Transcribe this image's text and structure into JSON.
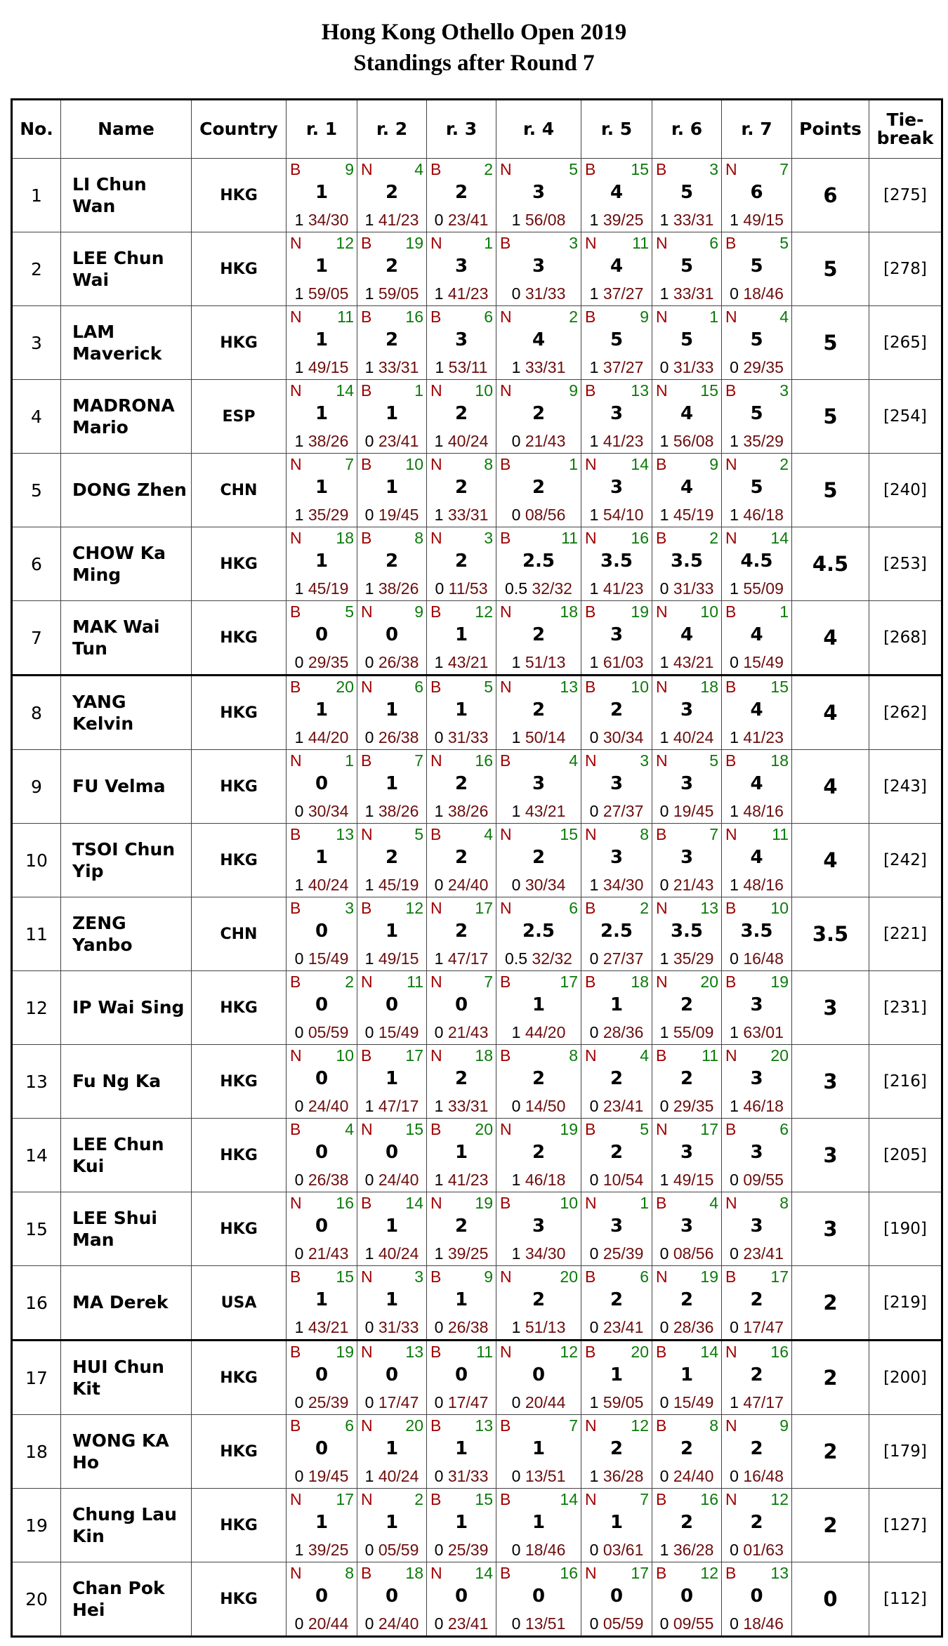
{
  "title": "Hong Kong Othello Open 2019",
  "subtitle": "Standings after Round 7",
  "headers": {
    "no": "No.",
    "name": "Name",
    "country": "Country",
    "rounds": [
      "r. 1",
      "r. 2",
      "r. 3",
      "r. 4",
      "r. 5",
      "r. 6",
      "r. 7"
    ],
    "points": "Points",
    "tiebreak_1": "Tie-",
    "tiebreak_2": "break"
  },
  "colors": {
    "disc_color": "#a00000",
    "opponent": "#0a7a0a",
    "discs": "#6b0d0d"
  },
  "rows": [
    {
      "no": "1",
      "name": "LI Chun Wan",
      "country": "HKG",
      "points": "6",
      "tiebreak": "[275]",
      "games": [
        [
          "B",
          "9",
          "1",
          "1",
          "34/30"
        ],
        [
          "N",
          "4",
          "2",
          "1",
          "41/23"
        ],
        [
          "B",
          "2",
          "2",
          "0",
          "23/41"
        ],
        [
          "N",
          "5",
          "3",
          "1",
          "56/08"
        ],
        [
          "B",
          "15",
          "4",
          "1",
          "39/25"
        ],
        [
          "B",
          "3",
          "5",
          "1",
          "33/31"
        ],
        [
          "N",
          "7",
          "6",
          "1",
          "49/15"
        ]
      ]
    },
    {
      "no": "2",
      "name": "LEE Chun Wai",
      "country": "HKG",
      "points": "5",
      "tiebreak": "[278]",
      "games": [
        [
          "N",
          "12",
          "1",
          "1",
          "59/05"
        ],
        [
          "B",
          "19",
          "2",
          "1",
          "59/05"
        ],
        [
          "N",
          "1",
          "3",
          "1",
          "41/23"
        ],
        [
          "B",
          "3",
          "3",
          "0",
          "31/33"
        ],
        [
          "N",
          "11",
          "4",
          "1",
          "37/27"
        ],
        [
          "N",
          "6",
          "5",
          "1",
          "33/31"
        ],
        [
          "B",
          "5",
          "5",
          "0",
          "18/46"
        ]
      ]
    },
    {
      "no": "3",
      "name": "LAM Maverick",
      "country": "HKG",
      "points": "5",
      "tiebreak": "[265]",
      "games": [
        [
          "N",
          "11",
          "1",
          "1",
          "49/15"
        ],
        [
          "B",
          "16",
          "2",
          "1",
          "33/31"
        ],
        [
          "B",
          "6",
          "3",
          "1",
          "53/11"
        ],
        [
          "N",
          "2",
          "4",
          "1",
          "33/31"
        ],
        [
          "B",
          "9",
          "5",
          "1",
          "37/27"
        ],
        [
          "N",
          "1",
          "5",
          "0",
          "31/33"
        ],
        [
          "N",
          "4",
          "5",
          "0",
          "29/35"
        ]
      ]
    },
    {
      "no": "4",
      "name": "MADRONA Mario",
      "country": "ESP",
      "points": "5",
      "tiebreak": "[254]",
      "games": [
        [
          "N",
          "14",
          "1",
          "1",
          "38/26"
        ],
        [
          "B",
          "1",
          "1",
          "0",
          "23/41"
        ],
        [
          "N",
          "10",
          "2",
          "1",
          "40/24"
        ],
        [
          "N",
          "9",
          "2",
          "0",
          "21/43"
        ],
        [
          "B",
          "13",
          "3",
          "1",
          "41/23"
        ],
        [
          "N",
          "15",
          "4",
          "1",
          "56/08"
        ],
        [
          "B",
          "3",
          "5",
          "1",
          "35/29"
        ]
      ]
    },
    {
      "no": "5",
      "name": "DONG Zhen",
      "country": "CHN",
      "points": "5",
      "tiebreak": "[240]",
      "games": [
        [
          "N",
          "7",
          "1",
          "1",
          "35/29"
        ],
        [
          "B",
          "10",
          "1",
          "0",
          "19/45"
        ],
        [
          "N",
          "8",
          "2",
          "1",
          "33/31"
        ],
        [
          "B",
          "1",
          "2",
          "0",
          "08/56"
        ],
        [
          "N",
          "14",
          "3",
          "1",
          "54/10"
        ],
        [
          "B",
          "9",
          "4",
          "1",
          "45/19"
        ],
        [
          "N",
          "2",
          "5",
          "1",
          "46/18"
        ]
      ]
    },
    {
      "no": "6",
      "name": "CHOW Ka Ming",
      "country": "HKG",
      "points": "4.5",
      "tiebreak": "[253]",
      "games": [
        [
          "N",
          "18",
          "1",
          "1",
          "45/19"
        ],
        [
          "B",
          "8",
          "2",
          "1",
          "38/26"
        ],
        [
          "N",
          "3",
          "2",
          "0",
          "11/53"
        ],
        [
          "B",
          "11",
          "2.5",
          "0.5",
          "32/32"
        ],
        [
          "N",
          "16",
          "3.5",
          "1",
          "41/23"
        ],
        [
          "B",
          "2",
          "3.5",
          "0",
          "31/33"
        ],
        [
          "N",
          "14",
          "4.5",
          "1",
          "55/09"
        ]
      ]
    },
    {
      "no": "7",
      "name": "MAK Wai Tun",
      "country": "HKG",
      "points": "4",
      "tiebreak": "[268]",
      "games": [
        [
          "B",
          "5",
          "0",
          "0",
          "29/35"
        ],
        [
          "N",
          "9",
          "0",
          "0",
          "26/38"
        ],
        [
          "B",
          "12",
          "1",
          "1",
          "43/21"
        ],
        [
          "N",
          "18",
          "2",
          "1",
          "51/13"
        ],
        [
          "B",
          "19",
          "3",
          "1",
          "61/03"
        ],
        [
          "N",
          "10",
          "4",
          "1",
          "43/21"
        ],
        [
          "B",
          "1",
          "4",
          "0",
          "15/49"
        ]
      ]
    },
    {
      "no": "8",
      "name": "YANG Kelvin",
      "country": "HKG",
      "points": "4",
      "tiebreak": "[262]",
      "games": [
        [
          "B",
          "20",
          "1",
          "1",
          "44/20"
        ],
        [
          "N",
          "6",
          "1",
          "0",
          "26/38"
        ],
        [
          "B",
          "5",
          "1",
          "0",
          "31/33"
        ],
        [
          "N",
          "13",
          "2",
          "1",
          "50/14"
        ],
        [
          "B",
          "10",
          "2",
          "0",
          "30/34"
        ],
        [
          "N",
          "18",
          "3",
          "1",
          "40/24"
        ],
        [
          "B",
          "15",
          "4",
          "1",
          "41/23"
        ]
      ]
    },
    {
      "no": "9",
      "name": "FU Velma",
      "country": "HKG",
      "points": "4",
      "tiebreak": "[243]",
      "games": [
        [
          "N",
          "1",
          "0",
          "0",
          "30/34"
        ],
        [
          "B",
          "7",
          "1",
          "1",
          "38/26"
        ],
        [
          "N",
          "16",
          "2",
          "1",
          "38/26"
        ],
        [
          "B",
          "4",
          "3",
          "1",
          "43/21"
        ],
        [
          "N",
          "3",
          "3",
          "0",
          "27/37"
        ],
        [
          "N",
          "5",
          "3",
          "0",
          "19/45"
        ],
        [
          "B",
          "18",
          "4",
          "1",
          "48/16"
        ]
      ]
    },
    {
      "no": "10",
      "name": "TSOI Chun Yip",
      "country": "HKG",
      "points": "4",
      "tiebreak": "[242]",
      "games": [
        [
          "B",
          "13",
          "1",
          "1",
          "40/24"
        ],
        [
          "N",
          "5",
          "2",
          "1",
          "45/19"
        ],
        [
          "B",
          "4",
          "2",
          "0",
          "24/40"
        ],
        [
          "N",
          "15",
          "2",
          "0",
          "30/34"
        ],
        [
          "N",
          "8",
          "3",
          "1",
          "34/30"
        ],
        [
          "B",
          "7",
          "3",
          "0",
          "21/43"
        ],
        [
          "N",
          "11",
          "4",
          "1",
          "48/16"
        ]
      ]
    },
    {
      "no": "11",
      "name": "ZENG Yanbo",
      "country": "CHN",
      "points": "3.5",
      "tiebreak": "[221]",
      "games": [
        [
          "B",
          "3",
          "0",
          "0",
          "15/49"
        ],
        [
          "B",
          "12",
          "1",
          "1",
          "49/15"
        ],
        [
          "N",
          "17",
          "2",
          "1",
          "47/17"
        ],
        [
          "N",
          "6",
          "2.5",
          "0.5",
          "32/32"
        ],
        [
          "B",
          "2",
          "2.5",
          "0",
          "27/37"
        ],
        [
          "N",
          "13",
          "3.5",
          "1",
          "35/29"
        ],
        [
          "B",
          "10",
          "3.5",
          "0",
          "16/48"
        ]
      ]
    },
    {
      "no": "12",
      "name": "IP Wai Sing",
      "country": "HKG",
      "points": "3",
      "tiebreak": "[231]",
      "games": [
        [
          "B",
          "2",
          "0",
          "0",
          "05/59"
        ],
        [
          "N",
          "11",
          "0",
          "0",
          "15/49"
        ],
        [
          "N",
          "7",
          "0",
          "0",
          "21/43"
        ],
        [
          "B",
          "17",
          "1",
          "1",
          "44/20"
        ],
        [
          "B",
          "18",
          "1",
          "0",
          "28/36"
        ],
        [
          "N",
          "20",
          "2",
          "1",
          "55/09"
        ],
        [
          "B",
          "19",
          "3",
          "1",
          "63/01"
        ]
      ]
    },
    {
      "no": "13",
      "name": "Fu Ng Ka",
      "country": "HKG",
      "points": "3",
      "tiebreak": "[216]",
      "games": [
        [
          "N",
          "10",
          "0",
          "0",
          "24/40"
        ],
        [
          "B",
          "17",
          "1",
          "1",
          "47/17"
        ],
        [
          "N",
          "18",
          "2",
          "1",
          "33/31"
        ],
        [
          "B",
          "8",
          "2",
          "0",
          "14/50"
        ],
        [
          "N",
          "4",
          "2",
          "0",
          "23/41"
        ],
        [
          "B",
          "11",
          "2",
          "0",
          "29/35"
        ],
        [
          "N",
          "20",
          "3",
          "1",
          "46/18"
        ]
      ]
    },
    {
      "no": "14",
      "name": "LEE Chun Kui",
      "country": "HKG",
      "points": "3",
      "tiebreak": "[205]",
      "games": [
        [
          "B",
          "4",
          "0",
          "0",
          "26/38"
        ],
        [
          "N",
          "15",
          "0",
          "0",
          "24/40"
        ],
        [
          "B",
          "20",
          "1",
          "1",
          "41/23"
        ],
        [
          "N",
          "19",
          "2",
          "1",
          "46/18"
        ],
        [
          "B",
          "5",
          "2",
          "0",
          "10/54"
        ],
        [
          "N",
          "17",
          "3",
          "1",
          "49/15"
        ],
        [
          "B",
          "6",
          "3",
          "0",
          "09/55"
        ]
      ]
    },
    {
      "no": "15",
      "name": "LEE Shui Man",
      "country": "HKG",
      "points": "3",
      "tiebreak": "[190]",
      "games": [
        [
          "N",
          "16",
          "0",
          "0",
          "21/43"
        ],
        [
          "B",
          "14",
          "1",
          "1",
          "40/24"
        ],
        [
          "N",
          "19",
          "2",
          "1",
          "39/25"
        ],
        [
          "B",
          "10",
          "3",
          "1",
          "34/30"
        ],
        [
          "N",
          "1",
          "3",
          "0",
          "25/39"
        ],
        [
          "B",
          "4",
          "3",
          "0",
          "08/56"
        ],
        [
          "N",
          "8",
          "3",
          "0",
          "23/41"
        ]
      ]
    },
    {
      "no": "16",
      "name": "MA Derek",
      "country": "USA",
      "points": "2",
      "tiebreak": "[219]",
      "games": [
        [
          "B",
          "15",
          "1",
          "1",
          "43/21"
        ],
        [
          "N",
          "3",
          "1",
          "0",
          "31/33"
        ],
        [
          "B",
          "9",
          "1",
          "0",
          "26/38"
        ],
        [
          "N",
          "20",
          "2",
          "1",
          "51/13"
        ],
        [
          "B",
          "6",
          "2",
          "0",
          "23/41"
        ],
        [
          "N",
          "19",
          "2",
          "0",
          "28/36"
        ],
        [
          "B",
          "17",
          "2",
          "0",
          "17/47"
        ]
      ]
    },
    {
      "no": "17",
      "name": "HUI Chun Kit",
      "country": "HKG",
      "points": "2",
      "tiebreak": "[200]",
      "games": [
        [
          "B",
          "19",
          "0",
          "0",
          "25/39"
        ],
        [
          "N",
          "13",
          "0",
          "0",
          "17/47"
        ],
        [
          "B",
          "11",
          "0",
          "0",
          "17/47"
        ],
        [
          "N",
          "12",
          "0",
          "0",
          "20/44"
        ],
        [
          "B",
          "20",
          "1",
          "1",
          "59/05"
        ],
        [
          "B",
          "14",
          "1",
          "0",
          "15/49"
        ],
        [
          "N",
          "16",
          "2",
          "1",
          "47/17"
        ]
      ]
    },
    {
      "no": "18",
      "name": "WONG KA Ho",
      "country": "HKG",
      "points": "2",
      "tiebreak": "[179]",
      "games": [
        [
          "B",
          "6",
          "0",
          "0",
          "19/45"
        ],
        [
          "N",
          "20",
          "1",
          "1",
          "40/24"
        ],
        [
          "B",
          "13",
          "1",
          "0",
          "31/33"
        ],
        [
          "B",
          "7",
          "1",
          "0",
          "13/51"
        ],
        [
          "N",
          "12",
          "2",
          "1",
          "36/28"
        ],
        [
          "B",
          "8",
          "2",
          "0",
          "24/40"
        ],
        [
          "N",
          "9",
          "2",
          "0",
          "16/48"
        ]
      ]
    },
    {
      "no": "19",
      "name": "Chung Lau Kin",
      "country": "HKG",
      "points": "2",
      "tiebreak": "[127]",
      "games": [
        [
          "N",
          "17",
          "1",
          "1",
          "39/25"
        ],
        [
          "N",
          "2",
          "1",
          "0",
          "05/59"
        ],
        [
          "B",
          "15",
          "1",
          "0",
          "25/39"
        ],
        [
          "B",
          "14",
          "1",
          "0",
          "18/46"
        ],
        [
          "N",
          "7",
          "1",
          "0",
          "03/61"
        ],
        [
          "B",
          "16",
          "2",
          "1",
          "36/28"
        ],
        [
          "N",
          "12",
          "2",
          "0",
          "01/63"
        ]
      ]
    },
    {
      "no": "20",
      "name": "Chan Pok Hei",
      "country": "HKG",
      "points": "0",
      "tiebreak": "[112]",
      "games": [
        [
          "N",
          "8",
          "0",
          "0",
          "20/44"
        ],
        [
          "B",
          "18",
          "0",
          "0",
          "24/40"
        ],
        [
          "N",
          "14",
          "0",
          "0",
          "23/41"
        ],
        [
          "B",
          "16",
          "0",
          "0",
          "13/51"
        ],
        [
          "N",
          "17",
          "0",
          "0",
          "05/59"
        ],
        [
          "B",
          "12",
          "0",
          "0",
          "09/55"
        ],
        [
          "B",
          "13",
          "0",
          "0",
          "18/46"
        ]
      ]
    }
  ]
}
